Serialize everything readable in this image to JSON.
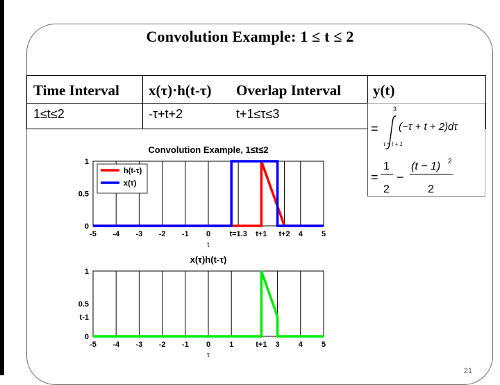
{
  "slide": {
    "title": "Convolution Example:   1 ≤ t ≤ 2",
    "page_number": "21"
  },
  "table": {
    "headers": [
      "Time Interval",
      "x(τ)·h(t-τ)",
      "Overlap Interval",
      "y(t)"
    ],
    "row": [
      "1≤t≤2",
      "-τ+t+2",
      "t+1≤τ≤3"
    ]
  },
  "formula": {
    "eq1": "=",
    "upper_limit": "3",
    "lower_limit": "τ = t + 1",
    "integrand": "(−τ + t + 2)dτ",
    "eq2": "=",
    "frac1_num": "1",
    "frac1_den": "2",
    "minus": "−",
    "frac2_num": "(t − 1)",
    "frac2_exp": "2",
    "frac2_den": "2"
  },
  "chart_data": [
    {
      "type": "line",
      "title": "Convolution Example, 1≤t≤2",
      "xlabel": "τ",
      "ylabel": "",
      "xlim": [
        -5,
        5
      ],
      "ylim": [
        0,
        1
      ],
      "xticks": [
        -5,
        -4,
        -3,
        -2,
        -1,
        0,
        1.3,
        2.3,
        3.3,
        4,
        5
      ],
      "xtick_labels": [
        "-5",
        "-4",
        "-3",
        "-2",
        "-1",
        "0",
        "t=1.3",
        "t+1",
        "t+2",
        "4",
        "5"
      ],
      "yticks": [
        0,
        0.5,
        1
      ],
      "ytick_labels": [
        "0",
        "0.5",
        "1"
      ],
      "grid": "vertical",
      "legend_position": "top-left",
      "series": [
        {
          "name": "h(t-τ)",
          "color": "#ff0000",
          "x": [
            -5,
            2.3,
            2.3,
            3.3,
            3.3,
            5
          ],
          "y": [
            0,
            0,
            1,
            0,
            0,
            0
          ]
        },
        {
          "name": "x(τ)",
          "color": "#0000ff",
          "x": [
            -5,
            1,
            1,
            3,
            3,
            5
          ],
          "y": [
            0,
            0,
            1,
            1,
            0,
            0
          ]
        }
      ]
    },
    {
      "type": "line",
      "title": "x(τ)h(t-τ)",
      "xlabel": "τ",
      "ylabel": "",
      "xlim": [
        -5,
        5
      ],
      "ylim": [
        0,
        1
      ],
      "xticks": [
        -5,
        -4,
        -3,
        -2,
        -1,
        0,
        1,
        2.3,
        3,
        4,
        5
      ],
      "xtick_labels": [
        "-5",
        "-4",
        "-3",
        "-2",
        "-1",
        "0",
        "1",
        "t+1",
        "3",
        "4",
        "5"
      ],
      "yticks": [
        0,
        0.5,
        1
      ],
      "ytick_labels": [
        "0",
        "0.5",
        "1"
      ],
      "extra_ytick_label": "t-1",
      "extra_ytick_value": 0.3,
      "grid": "vertical",
      "series": [
        {
          "name": "",
          "color": "#00ee00",
          "x": [
            -5,
            2.3,
            2.3,
            3,
            3,
            5
          ],
          "y": [
            0,
            0,
            1,
            0.3,
            0,
            0
          ]
        }
      ]
    }
  ]
}
